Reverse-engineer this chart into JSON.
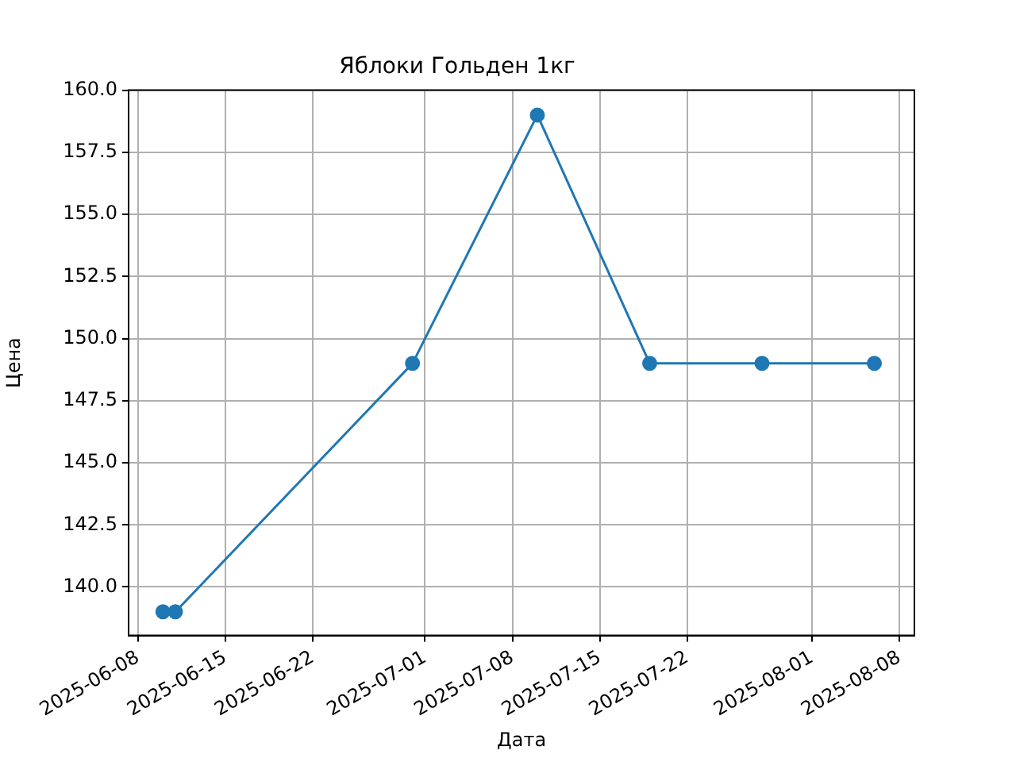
{
  "chart_data": {
    "type": "line",
    "title": "Яблоки Гольден 1кг",
    "xlabel": "Дата",
    "ylabel": "Цена",
    "x": [
      "2025-06-10",
      "2025-06-11",
      "2025-06-30",
      "2025-07-10",
      "2025-07-19",
      "2025-07-28",
      "2025-08-06"
    ],
    "series": [
      {
        "color": "#1f77b4",
        "values": [
          139,
          139,
          149,
          159,
          149,
          149,
          149
        ]
      }
    ],
    "xlim": [
      "2025-06-07T06:00",
      "2025-08-09T05:00"
    ],
    "xticks": [
      {
        "value": "2025-06-08",
        "label": "2025-06-08"
      },
      {
        "value": "2025-06-15",
        "label": "2025-06-15"
      },
      {
        "value": "2025-06-22",
        "label": "2025-06-22"
      },
      {
        "value": "2025-07-01",
        "label": "2025-07-01"
      },
      {
        "value": "2025-07-08",
        "label": "2025-07-08"
      },
      {
        "value": "2025-07-15",
        "label": "2025-07-15"
      },
      {
        "value": "2025-07-22",
        "label": "2025-07-22"
      },
      {
        "value": "2025-08-01",
        "label": "2025-08-01"
      },
      {
        "value": "2025-08-08",
        "label": "2025-08-08"
      }
    ],
    "ylim": [
      138.05,
      160
    ],
    "yticks": [
      {
        "value": 140,
        "label": "140.0"
      },
      {
        "value": 142.5,
        "label": "142.5"
      },
      {
        "value": 145,
        "label": "145.0"
      },
      {
        "value": 147.5,
        "label": "147.5"
      },
      {
        "value": 150,
        "label": "150.0"
      },
      {
        "value": 152.5,
        "label": "152.5"
      },
      {
        "value": 155,
        "label": "155.0"
      },
      {
        "value": 157.5,
        "label": "157.5"
      },
      {
        "value": 160,
        "label": "160.0"
      }
    ],
    "grid": true,
    "marker": "circle",
    "line_style": "solid",
    "legend": false
  }
}
